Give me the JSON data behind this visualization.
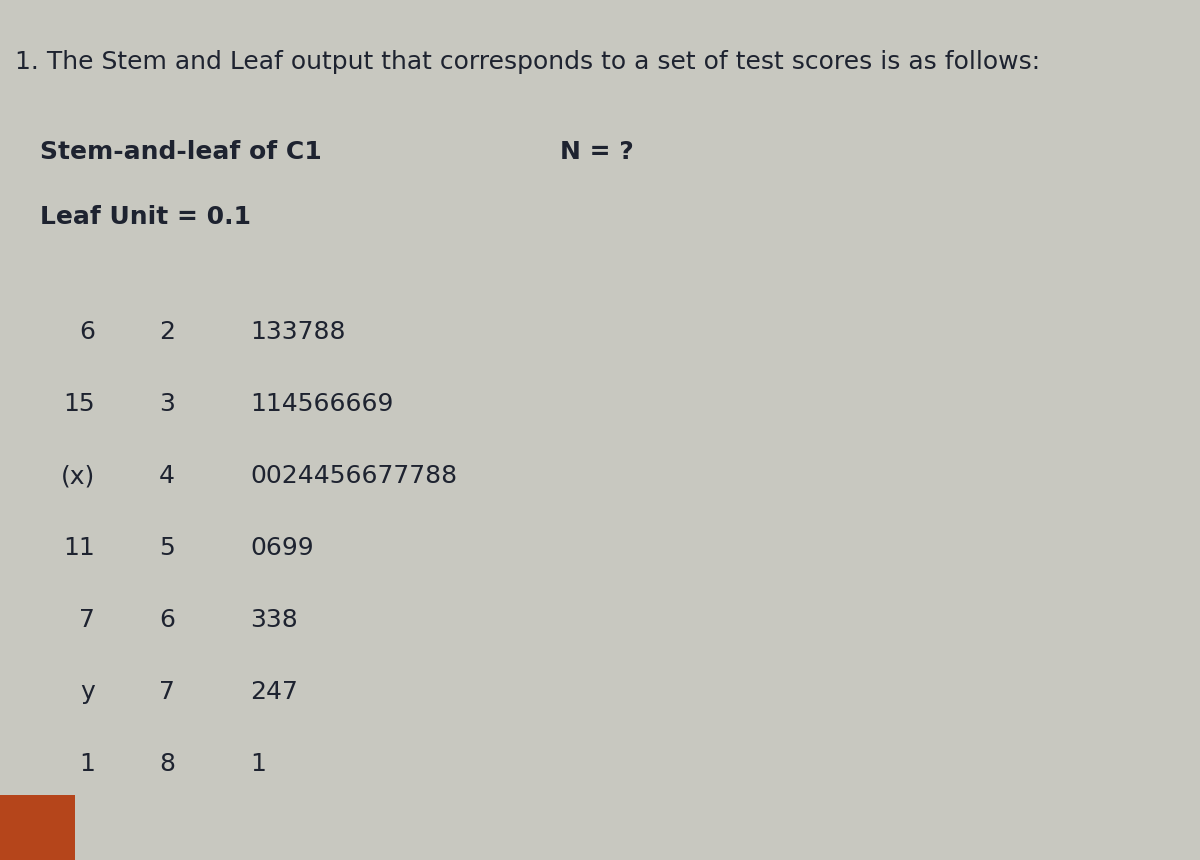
{
  "title": "1. The Stem and Leaf output that corresponds to a set of test scores is as follows:",
  "header1": "Stem-and-leaf of C1",
  "header2": "N = ?",
  "header3": "Leaf Unit = 0.1",
  "rows": [
    {
      "col1": "6",
      "col2": "2",
      "col3": "133788"
    },
    {
      "col1": "15",
      "col2": "3",
      "col3": "114566669"
    },
    {
      "col1": "(x)",
      "col2": "4",
      "col3": "0024456677788"
    },
    {
      "col1": "11",
      "col2": "5",
      "col3": "0699"
    },
    {
      "col1": "7",
      "col2": "6",
      "col3": "338"
    },
    {
      "col1": "y",
      "col2": "7",
      "col3": "247"
    },
    {
      "col1": "1",
      "col2": "8",
      "col3": "1"
    }
  ],
  "bg_color": "#c8c8c0",
  "text_color": "#1e2330",
  "title_fontsize": 18,
  "header_fontsize": 18,
  "body_fontsize": 18,
  "rect_color": "#b5451b"
}
